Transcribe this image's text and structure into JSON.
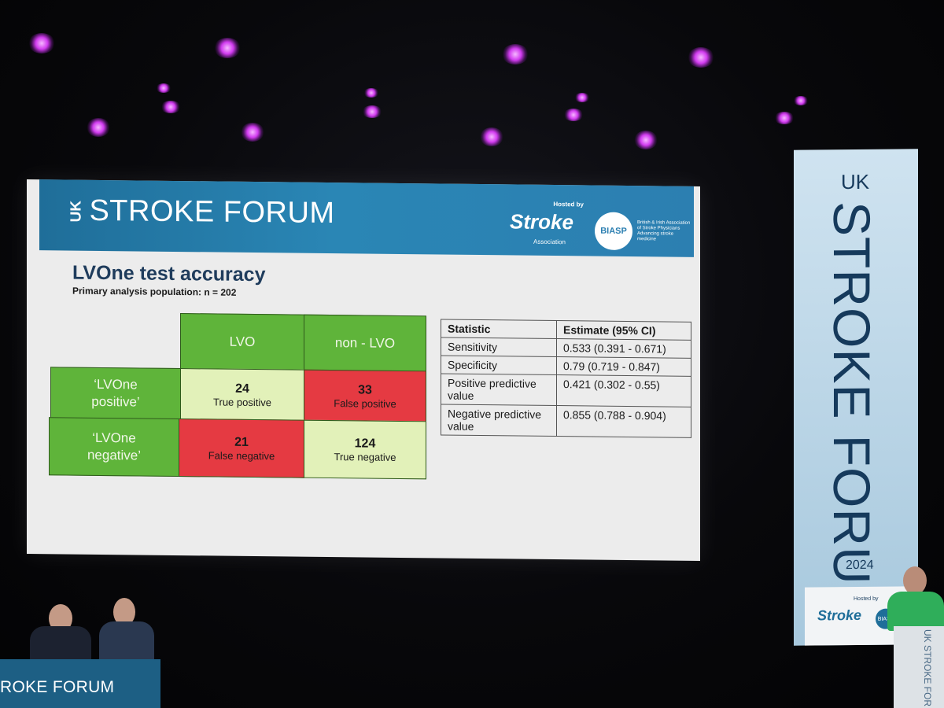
{
  "slide": {
    "brand_prefix": "UK",
    "brand": "STROKE FORUM",
    "hosted_by": "Hosted by",
    "logo_stroke": "Stroke",
    "logo_stroke_sub": "Association",
    "logo_biasp": "BIASP",
    "logo_biasp_text": "British & Irish Association of Stroke Physicians Advancing stroke medicine",
    "title": "LVOne test accuracy",
    "subtitle": "Primary analysis population: n = 202",
    "matrix": {
      "col_lvo": "LVO",
      "col_non_lvo": "non - LVO",
      "row_pos_line1": "‘LVOne",
      "row_pos_line2": "positive’",
      "row_neg_line1": "‘LVOne",
      "row_neg_line2": "negative’",
      "tp_value": "24",
      "tp_label": "True positive",
      "fp_value": "33",
      "fp_label": "False positive",
      "fn_value": "21",
      "fn_label": "False negative",
      "tn_value": "124",
      "tn_label": "True negative"
    },
    "stats": {
      "header_stat": "Statistic",
      "header_est": "Estimate (95% CI)",
      "rows": [
        {
          "stat": "Sensitivity",
          "est": "0.533 (0.391 - 0.671)"
        },
        {
          "stat": "Specificity",
          "est": "0.79 (0.719 - 0.847)"
        },
        {
          "stat": "Positive predictive value",
          "est": "0.421 (0.302 - 0.55)"
        },
        {
          "stat": "Negative predictive value",
          "est": "0.855 (0.788 - 0.904)"
        }
      ]
    }
  },
  "banner": {
    "uk": "UK",
    "main": "STROKE FORUM",
    "year": "2024",
    "hosted": "Hosted by",
    "stroke": "Stroke",
    "biasp": "BIASP"
  },
  "stage": {
    "table_text": "ROKE FORUM",
    "lectern_text": "UK STROKE FOR"
  },
  "colors": {
    "header_blue": "#2a86b5",
    "green": "#5fb43a",
    "pale_green": "#e2f1b9",
    "red": "#e53a42",
    "stage_light": "#d23cf0"
  }
}
